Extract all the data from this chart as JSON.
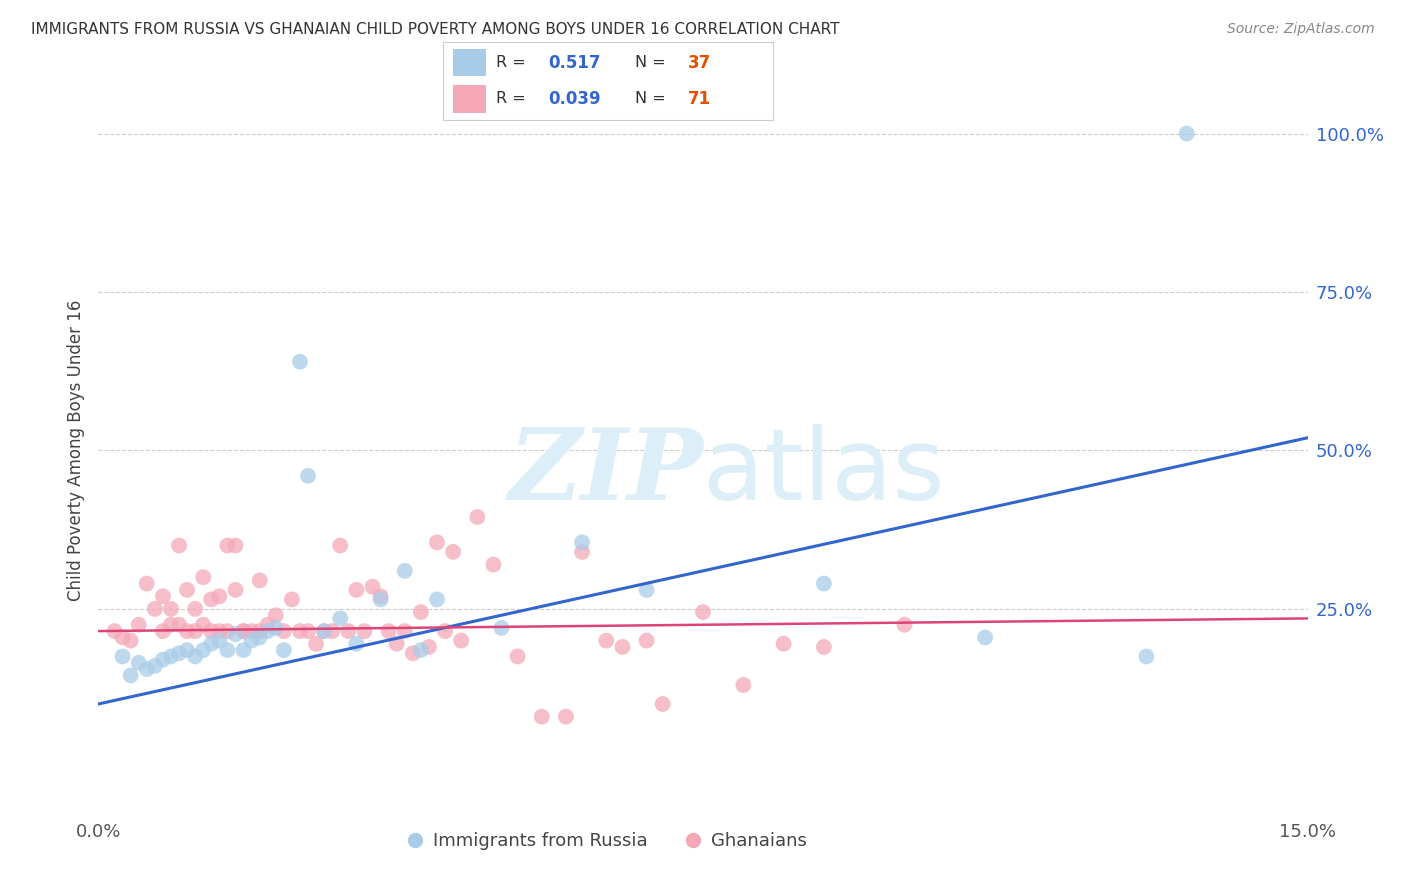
{
  "title": "IMMIGRANTS FROM RUSSIA VS GHANAIAN CHILD POVERTY AMONG BOYS UNDER 16 CORRELATION CHART",
  "source": "Source: ZipAtlas.com",
  "ylabel": "Child Poverty Among Boys Under 16",
  "yticks": [
    "100.0%",
    "75.0%",
    "50.0%",
    "25.0%"
  ],
  "ytick_vals": [
    1.0,
    0.75,
    0.5,
    0.25
  ],
  "xmin": 0.0,
  "xmax": 0.15,
  "ymin": -0.07,
  "ymax": 1.07,
  "legend_r_blue": "0.517",
  "legend_n_blue": "37",
  "legend_r_pink": "0.039",
  "legend_n_pink": "71",
  "blue_color": "#a8cce8",
  "pink_color": "#f4a8b8",
  "blue_line_color": "#3366cc",
  "pink_line_color": "#dd4477",
  "n_color": "#e05000",
  "watermark_color": "#dceef8",
  "blue_line_y0": 0.1,
  "blue_line_y1": 0.52,
  "pink_line_y0": 0.215,
  "pink_line_y1": 0.235,
  "blue_x": [
    0.003,
    0.004,
    0.005,
    0.006,
    0.007,
    0.008,
    0.009,
    0.01,
    0.011,
    0.012,
    0.013,
    0.014,
    0.015,
    0.016,
    0.017,
    0.018,
    0.019,
    0.02,
    0.021,
    0.022,
    0.023,
    0.025,
    0.026,
    0.028,
    0.03,
    0.032,
    0.035,
    0.038,
    0.04,
    0.042,
    0.05,
    0.06,
    0.068,
    0.09,
    0.11,
    0.13,
    0.135
  ],
  "blue_y": [
    0.175,
    0.145,
    0.165,
    0.155,
    0.16,
    0.17,
    0.175,
    0.18,
    0.185,
    0.175,
    0.185,
    0.195,
    0.2,
    0.185,
    0.21,
    0.185,
    0.2,
    0.205,
    0.215,
    0.22,
    0.185,
    0.64,
    0.46,
    0.215,
    0.235,
    0.195,
    0.265,
    0.31,
    0.185,
    0.265,
    0.22,
    0.355,
    0.28,
    0.29,
    0.205,
    0.175,
    1.0
  ],
  "pink_x": [
    0.002,
    0.003,
    0.004,
    0.005,
    0.006,
    0.007,
    0.008,
    0.008,
    0.009,
    0.009,
    0.01,
    0.01,
    0.011,
    0.011,
    0.012,
    0.012,
    0.013,
    0.013,
    0.014,
    0.014,
    0.015,
    0.015,
    0.016,
    0.016,
    0.017,
    0.017,
    0.018,
    0.018,
    0.019,
    0.02,
    0.02,
    0.021,
    0.022,
    0.023,
    0.024,
    0.025,
    0.026,
    0.027,
    0.028,
    0.029,
    0.03,
    0.031,
    0.032,
    0.033,
    0.034,
    0.035,
    0.036,
    0.037,
    0.038,
    0.039,
    0.04,
    0.041,
    0.042,
    0.043,
    0.044,
    0.045,
    0.047,
    0.049,
    0.052,
    0.055,
    0.058,
    0.06,
    0.063,
    0.065,
    0.068,
    0.07,
    0.075,
    0.08,
    0.085,
    0.09,
    0.1
  ],
  "pink_y": [
    0.215,
    0.205,
    0.2,
    0.225,
    0.29,
    0.25,
    0.215,
    0.27,
    0.225,
    0.25,
    0.35,
    0.225,
    0.28,
    0.215,
    0.25,
    0.215,
    0.3,
    0.225,
    0.265,
    0.215,
    0.215,
    0.27,
    0.35,
    0.215,
    0.28,
    0.35,
    0.215,
    0.215,
    0.215,
    0.215,
    0.295,
    0.225,
    0.24,
    0.215,
    0.265,
    0.215,
    0.215,
    0.195,
    0.215,
    0.215,
    0.35,
    0.215,
    0.28,
    0.215,
    0.285,
    0.27,
    0.215,
    0.195,
    0.215,
    0.18,
    0.245,
    0.19,
    0.355,
    0.215,
    0.34,
    0.2,
    0.395,
    0.32,
    0.175,
    0.08,
    0.08,
    0.34,
    0.2,
    0.19,
    0.2,
    0.1,
    0.245,
    0.13,
    0.195,
    0.19,
    0.225
  ]
}
